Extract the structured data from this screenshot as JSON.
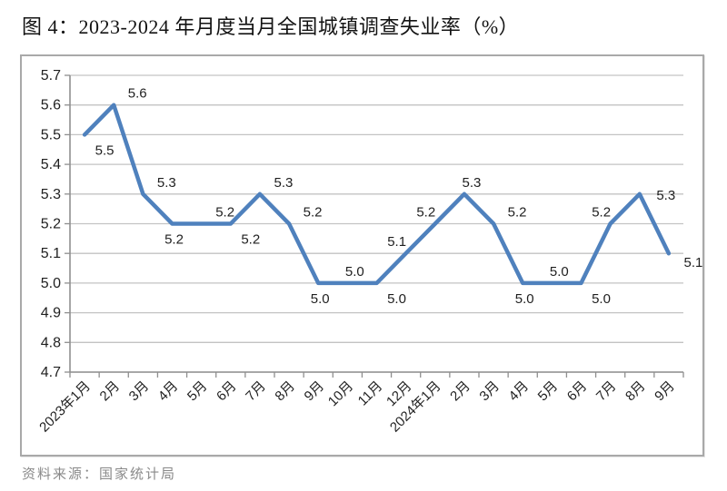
{
  "figure": {
    "title": "图 4：2023-2024 年月度当月全国城镇调查失业率（%）",
    "source_note": "资料来源：国家统计局"
  },
  "chart_data": {
    "type": "line",
    "title": "图 4：2023-2024 年月度当月全国城镇调查失业率（%）",
    "categories": [
      "2023年1月",
      "2月",
      "3月",
      "4月",
      "5月",
      "6月",
      "7月",
      "8月",
      "9月",
      "10月",
      "11月",
      "12月",
      "2024年1月",
      "2月",
      "3月",
      "4月",
      "5月",
      "6月",
      "7月",
      "8月",
      "9月"
    ],
    "values": [
      5.5,
      5.6,
      5.3,
      5.2,
      5.2,
      5.2,
      5.3,
      5.2,
      5.0,
      5.0,
      5.0,
      5.1,
      5.2,
      5.3,
      5.2,
      5.0,
      5.0,
      5.0,
      5.2,
      5.3,
      5.1
    ],
    "data_label_positions": [
      "below-right",
      "above-right",
      "above-right",
      "below",
      "above-right",
      "below-right",
      "above-right",
      "above-right",
      "below",
      "above",
      "below-right",
      "above-left",
      "above-left",
      "above",
      "above-right",
      "below",
      "above",
      "below-right",
      "above-left",
      "right",
      "right-below"
    ],
    "xlabel": "",
    "ylabel": "",
    "ylim": [
      4.7,
      5.7
    ],
    "ytick_step": 0.1,
    "ytick_labels": [
      "5.7",
      "5.6",
      "5.5",
      "5.4",
      "5.3",
      "5.2",
      "5.1",
      "5.0",
      "4.9",
      "4.8",
      "4.7"
    ],
    "grid": true,
    "legend": "none",
    "value_decimals": 1,
    "colors": {
      "line": "#4F81BD",
      "grid": "#c3c3c3",
      "axis": "#8f8f8f",
      "data_label": "#1a1a1a",
      "tick_label": "#262626"
    }
  }
}
